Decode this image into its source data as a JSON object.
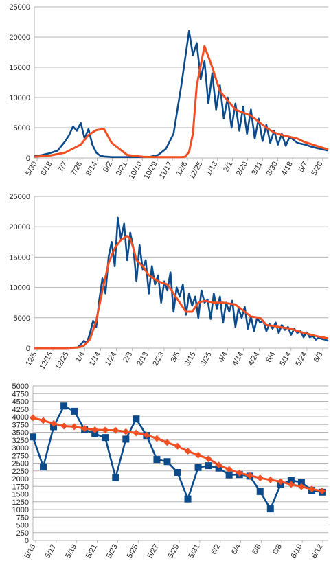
{
  "colors": {
    "series_blue": "#0b4a8b",
    "series_orange": "#f04e23",
    "grid": "#b3b3b3",
    "axis": "#b3b3b3"
  },
  "chart_data": [
    {
      "type": "line",
      "yticks": [
        "0",
        "5000",
        "10000",
        "15000",
        "20000",
        "25000"
      ],
      "ylim": [
        0,
        25000
      ],
      "xticks": [
        "5/30",
        "6/18",
        "7/7",
        "7/26",
        "8/14",
        "9/2",
        "9/21",
        "10/10",
        "10/29",
        "11/17",
        "12/6",
        "12/25",
        "1/13",
        "2/1",
        "2/20",
        "3/11",
        "3/30",
        "4/18",
        "5/7",
        "5/26"
      ],
      "series": [
        {
          "color": "#0b4a8b",
          "x": [
            0,
            10,
            20,
            30,
            40,
            45,
            50,
            55,
            60,
            65,
            70,
            75,
            80,
            85,
            90,
            95,
            100,
            110,
            120,
            130,
            140,
            150,
            160,
            170,
            180,
            190,
            200,
            205,
            210,
            215,
            220,
            225,
            230,
            235,
            240,
            245,
            250,
            255,
            260,
            265,
            270,
            275,
            280,
            285,
            290,
            295,
            300,
            305,
            310,
            315,
            320,
            325,
            330,
            340,
            350,
            360,
            370,
            380
          ],
          "y": [
            300,
            500,
            800,
            1200,
            2800,
            3800,
            5200,
            4500,
            5800,
            3200,
            4800,
            2200,
            900,
            400,
            250,
            200,
            150,
            150,
            150,
            150,
            150,
            200,
            500,
            1500,
            4000,
            12000,
            21000,
            17000,
            19000,
            13000,
            16000,
            9000,
            14000,
            8000,
            12000,
            6500,
            10000,
            5000,
            9000,
            4500,
            8500,
            4000,
            8000,
            3200,
            6500,
            2800,
            5500,
            2500,
            4500,
            2200,
            4000,
            2000,
            3500,
            2500,
            2200,
            1800,
            1500,
            1200
          ]
        },
        {
          "color": "#f04e23",
          "x": [
            0,
            20,
            40,
            60,
            70,
            80,
            90,
            100,
            120,
            140,
            160,
            180,
            190,
            195,
            200,
            205,
            210,
            220,
            230,
            240,
            250,
            260,
            270,
            280,
            290,
            300,
            310,
            320,
            330,
            340,
            350,
            360,
            370,
            380
          ],
          "y": [
            200,
            400,
            900,
            2200,
            3800,
            4600,
            4800,
            2500,
            500,
            200,
            150,
            150,
            150,
            200,
            1000,
            4000,
            12000,
            18500,
            15000,
            11000,
            9500,
            8000,
            7500,
            7000,
            6000,
            5000,
            4200,
            3800,
            3500,
            3200,
            2600,
            2200,
            1800,
            1400
          ]
        }
      ]
    },
    {
      "type": "line",
      "yticks": [
        "0",
        "5000",
        "10000",
        "15000",
        "20000",
        "25000"
      ],
      "ylim": [
        0,
        25000
      ],
      "xticks": [
        "12/5",
        "12/15",
        "12/25",
        "1/4",
        "1/14",
        "1/24",
        "2/3",
        "2/13",
        "2/23",
        "3/5",
        "3/15",
        "3/25",
        "4/4",
        "4/14",
        "4/24",
        "5/4",
        "5/14",
        "5/24",
        "6/3"
      ],
      "series": [
        {
          "color": "#0b4a8b",
          "x": [
            0,
            10,
            20,
            28,
            30,
            32,
            34,
            36,
            38,
            40,
            42,
            44,
            46,
            48,
            50,
            52,
            54,
            56,
            58,
            60,
            62,
            64,
            66,
            68,
            70,
            72,
            74,
            76,
            78,
            80,
            82,
            84,
            86,
            88,
            90,
            92,
            94,
            96,
            98,
            100,
            102,
            104,
            106,
            108,
            110,
            112,
            114,
            116,
            118,
            120,
            122,
            124,
            126,
            128,
            130,
            132,
            134,
            136,
            138,
            140,
            142,
            144,
            146,
            148,
            150,
            152,
            154,
            156,
            158,
            160,
            162,
            164,
            166,
            168,
            170,
            172,
            174,
            176,
            178,
            180,
            182,
            184,
            186,
            188,
            190
          ],
          "y": [
            0,
            0,
            0,
            100,
            600,
            1200,
            900,
            2500,
            4500,
            3500,
            8000,
            11500,
            9000,
            15000,
            17500,
            13500,
            21500,
            18000,
            20500,
            14500,
            19000,
            16500,
            11000,
            17000,
            13000,
            14500,
            9000,
            13500,
            10500,
            12000,
            7500,
            11000,
            9500,
            12500,
            6000,
            10000,
            8500,
            10500,
            5500,
            9000,
            7000,
            8500,
            5000,
            9500,
            7500,
            8000,
            4800,
            9000,
            6500,
            8500,
            4200,
            7500,
            6000,
            7800,
            3500,
            6500,
            5000,
            6800,
            3200,
            5200,
            2800,
            5000,
            4200,
            4500,
            2800,
            4000,
            3200,
            4200,
            2500,
            3800,
            3000,
            3500,
            2200,
            3200,
            2500,
            2800,
            1800,
            2600,
            1800,
            2000,
            1400,
            1800,
            1500,
            1400,
            1200
          ]
        },
        {
          "color": "#f04e23",
          "x": [
            0,
            20,
            28,
            32,
            36,
            40,
            44,
            48,
            52,
            56,
            60,
            62,
            64,
            66,
            70,
            74,
            80,
            86,
            90,
            94,
            98,
            102,
            106,
            110,
            116,
            122,
            130,
            136,
            140,
            146,
            150,
            156,
            160,
            166,
            170,
            176,
            182,
            190
          ],
          "y": [
            0,
            0,
            100,
            400,
            1500,
            4500,
            9500,
            14000,
            16500,
            17800,
            18500,
            18000,
            16500,
            14500,
            13500,
            12000,
            11000,
            10500,
            9000,
            7500,
            6000,
            6000,
            7500,
            7800,
            7500,
            7500,
            7200,
            6000,
            5200,
            5000,
            3800,
            3600,
            3400,
            3200,
            2800,
            2400,
            2000,
            1600
          ]
        }
      ]
    },
    {
      "type": "line",
      "yticks": [
        "0",
        "250",
        "500",
        "750",
        "1000",
        "1250",
        "1500",
        "1750",
        "2000",
        "2250",
        "2500",
        "2750",
        "3000",
        "3250",
        "3500",
        "3750",
        "4000",
        "4250",
        "4500",
        "4750",
        "5000"
      ],
      "ylim": [
        0,
        5000
      ],
      "xticks": [
        "5/15",
        "5/17",
        "5/19",
        "5/21",
        "5/23",
        "5/25",
        "5/27",
        "5/29",
        "5/31",
        "6/2",
        "6/4",
        "6/6",
        "6/8",
        "6/10",
        "6/12"
      ],
      "series": [
        {
          "color": "#0b4a8b",
          "marker": "square",
          "x": [
            0,
            1,
            2,
            3,
            4,
            5,
            6,
            7,
            8,
            9,
            10,
            11,
            12,
            13,
            14,
            15,
            16,
            17,
            18,
            19,
            20,
            21,
            22,
            23,
            24,
            25,
            26,
            27,
            28
          ],
          "y": [
            3350,
            2380,
            3680,
            4350,
            4180,
            3580,
            3450,
            3330,
            2030,
            3280,
            3930,
            3400,
            2620,
            2550,
            2200,
            1340,
            2360,
            2420,
            2340,
            2120,
            2130,
            2080,
            1580,
            1020,
            1820,
            1940,
            1880,
            1620,
            1560
          ]
        },
        {
          "color": "#f04e23",
          "marker": "diamond",
          "x": [
            0,
            1,
            2,
            3,
            4,
            5,
            6,
            7,
            8,
            9,
            10,
            11,
            12,
            13,
            14,
            15,
            16,
            17,
            18,
            19,
            20,
            21,
            22,
            23,
            24,
            25,
            26,
            27,
            28
          ],
          "y": [
            3970,
            3880,
            3780,
            3700,
            3680,
            3620,
            3580,
            3570,
            3560,
            3520,
            3480,
            3410,
            3300,
            3170,
            3050,
            2890,
            2760,
            2640,
            2440,
            2300,
            2180,
            2100,
            2020,
            1960,
            1900,
            1810,
            1740,
            1660,
            1600
          ]
        }
      ]
    }
  ]
}
